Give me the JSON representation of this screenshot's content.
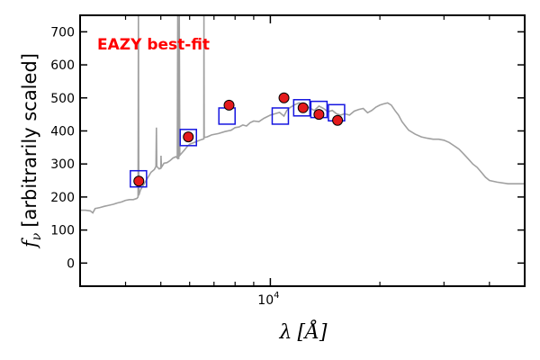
{
  "chart_data": {
    "type": "scatter",
    "title": "",
    "annotation": {
      "text": "EAZY best-fit",
      "color": "#ff0000"
    },
    "xlabel": "λ [Å]",
    "ylabel": "f_ν [arbitrarily scaled]",
    "ylabel_parts": {
      "symbol": "f",
      "subscript": "ν",
      "text": "[arbitrarily scaled]"
    },
    "xlabel_parts": {
      "symbol": "λ",
      "unit": "[Å]"
    },
    "x_scale": "log",
    "xlim": [
      3000,
      50000
    ],
    "ylim": [
      -70,
      750
    ],
    "y_ticks": [
      0,
      100,
      200,
      300,
      400,
      500,
      600,
      700
    ],
    "x_major_ticks": [
      {
        "value": 10000,
        "base": "10",
        "exp": "4"
      }
    ],
    "x_minor_ticks": [
      4000,
      5000,
      6000,
      7000,
      8000,
      9000,
      20000,
      30000,
      40000
    ],
    "grid": false,
    "colors": {
      "template": "#a0a0a0",
      "model": "#1515e0",
      "observed_fill": "#e41a1c",
      "observed_edge": "#000000"
    },
    "series": [
      {
        "kind": "line",
        "points": [
          [
            3000,
            160
          ],
          [
            3100,
            160
          ],
          [
            3200,
            158
          ],
          [
            3250,
            152
          ],
          [
            3300,
            165
          ],
          [
            3400,
            168
          ],
          [
            3500,
            172
          ],
          [
            3600,
            175
          ],
          [
            3700,
            178
          ],
          [
            3800,
            182
          ],
          [
            3900,
            185
          ],
          [
            4000,
            190
          ],
          [
            4100,
            192
          ],
          [
            4200,
            192
          ],
          [
            4300,
            196
          ],
          [
            4330,
            200
          ],
          [
            4340,
            750
          ],
          [
            4350,
            205
          ],
          [
            4400,
            222
          ],
          [
            4500,
            240
          ],
          [
            4600,
            258
          ],
          [
            4700,
            275
          ],
          [
            4800,
            283
          ],
          [
            4850,
            293
          ],
          [
            4862,
            410
          ],
          [
            4875,
            293
          ],
          [
            4900,
            290
          ],
          [
            4950,
            285
          ],
          [
            5000,
            288
          ],
          [
            5007,
            325
          ],
          [
            5020,
            290
          ],
          [
            5100,
            302
          ],
          [
            5200,
            304
          ],
          [
            5300,
            310
          ],
          [
            5400,
            318
          ],
          [
            5500,
            322
          ],
          [
            5550,
            318
          ],
          [
            5565,
            750
          ],
          [
            5575,
            322
          ],
          [
            5600,
            315
          ],
          [
            5620,
            750
          ],
          [
            5640,
            326
          ],
          [
            5700,
            332
          ],
          [
            5800,
            342
          ],
          [
            5900,
            352
          ],
          [
            6000,
            360
          ],
          [
            6200,
            366
          ],
          [
            6400,
            372
          ],
          [
            6563,
            376
          ],
          [
            6570,
            750
          ],
          [
            6580,
            380
          ],
          [
            6700,
            382
          ],
          [
            6900,
            388
          ],
          [
            7200,
            392
          ],
          [
            7500,
            398
          ],
          [
            7800,
            402
          ],
          [
            8000,
            410
          ],
          [
            8200,
            412
          ],
          [
            8400,
            418
          ],
          [
            8600,
            415
          ],
          [
            8800,
            425
          ],
          [
            9000,
            430
          ],
          [
            9300,
            428
          ],
          [
            9600,
            438
          ],
          [
            10000,
            448
          ],
          [
            10300,
            452
          ],
          [
            10600,
            456
          ],
          [
            10900,
            445
          ],
          [
            11100,
            462
          ],
          [
            11300,
            470
          ],
          [
            11600,
            478
          ],
          [
            12000,
            485
          ],
          [
            12400,
            478
          ],
          [
            12800,
            470
          ],
          [
            13200,
            462
          ],
          [
            13600,
            475
          ],
          [
            14000,
            468
          ],
          [
            14400,
            458
          ],
          [
            14800,
            462
          ],
          [
            15200,
            452
          ],
          [
            15600,
            448
          ],
          [
            16000,
            452
          ],
          [
            16500,
            448
          ],
          [
            17000,
            460
          ],
          [
            17500,
            465
          ],
          [
            18000,
            468
          ],
          [
            18500,
            455
          ],
          [
            19000,
            462
          ],
          [
            19500,
            472
          ],
          [
            20000,
            478
          ],
          [
            20500,
            482
          ],
          [
            21000,
            485
          ],
          [
            21500,
            478
          ],
          [
            22000,
            462
          ],
          [
            22500,
            448
          ],
          [
            23000,
            428
          ],
          [
            23500,
            415
          ],
          [
            24000,
            402
          ],
          [
            25000,
            390
          ],
          [
            26000,
            382
          ],
          [
            27000,
            378
          ],
          [
            28000,
            375
          ],
          [
            29000,
            375
          ],
          [
            30000,
            372
          ],
          [
            31000,
            365
          ],
          [
            32000,
            355
          ],
          [
            33000,
            345
          ],
          [
            34000,
            330
          ],
          [
            35000,
            315
          ],
          [
            36000,
            300
          ],
          [
            37000,
            290
          ],
          [
            38000,
            275
          ],
          [
            39000,
            260
          ],
          [
            40000,
            250
          ],
          [
            42000,
            245
          ],
          [
            45000,
            240
          ],
          [
            50000,
            240
          ]
        ]
      },
      {
        "kind": "model_squares",
        "points": [
          [
            4340,
            255
          ],
          [
            5950,
            380
          ],
          [
            7600,
            445
          ],
          [
            10650,
            445
          ],
          [
            12200,
            470
          ],
          [
            13600,
            465
          ],
          [
            15200,
            455
          ]
        ]
      },
      {
        "kind": "observed_points",
        "points": [
          [
            4350,
            248
          ],
          [
            5950,
            382
          ],
          [
            7700,
            478
          ],
          [
            10900,
            500
          ],
          [
            12300,
            470
          ],
          [
            13600,
            450
          ],
          [
            15300,
            432
          ]
        ]
      }
    ]
  }
}
